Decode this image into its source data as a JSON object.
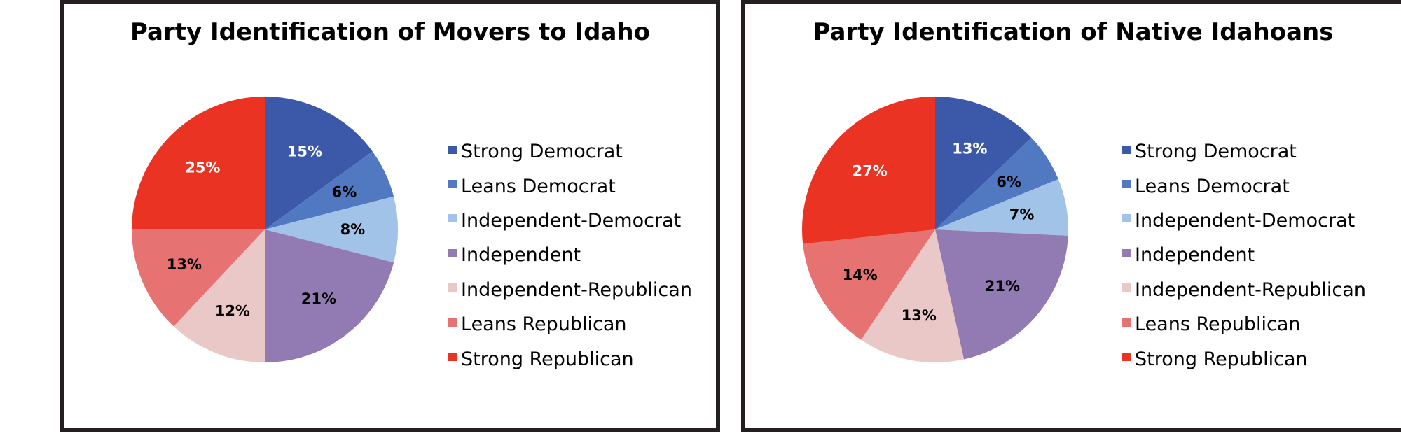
{
  "chart_data": [
    {
      "type": "pie",
      "title": "Party Identification of Movers to Idaho",
      "categories": [
        "Strong Democrat",
        "Leans Democrat",
        "Independent-Democrat",
        "Independent",
        "Independent-Republican",
        "Leans Republican",
        "Strong Republican"
      ],
      "values": [
        15,
        6,
        8,
        21,
        12,
        13,
        25
      ],
      "labels": [
        "15%",
        "6%",
        "8%",
        "21%",
        "12%",
        "13%",
        "25%"
      ],
      "colors": [
        "#3c58a8",
        "#5079c1",
        "#a2c3e8",
        "#927bb3",
        "#ebc8c8",
        "#e77272",
        "#ea3322"
      ],
      "label_colors": [
        "#ffffff",
        "#000000",
        "#000000",
        "#000000",
        "#000000",
        "#000000",
        "#ffffff"
      ],
      "legend_position": "right"
    },
    {
      "type": "pie",
      "title": "Party Identification of Native Idahoans",
      "categories": [
        "Strong Democrat",
        "Leans Democrat",
        "Independent-Democrat",
        "Independent",
        "Independent-Republican",
        "Leans Republican",
        "Strong Republican"
      ],
      "values": [
        13,
        6,
        7,
        21,
        13,
        14,
        27
      ],
      "labels": [
        "13%",
        "6%",
        "7%",
        "21%",
        "13%",
        "14%",
        "27%"
      ],
      "colors": [
        "#3c58a8",
        "#5079c1",
        "#a2c3e8",
        "#927bb3",
        "#ebc8c8",
        "#e77272",
        "#ea3322"
      ],
      "label_colors": [
        "#ffffff",
        "#000000",
        "#000000",
        "#000000",
        "#000000",
        "#000000",
        "#ffffff"
      ],
      "legend_position": "right"
    }
  ]
}
